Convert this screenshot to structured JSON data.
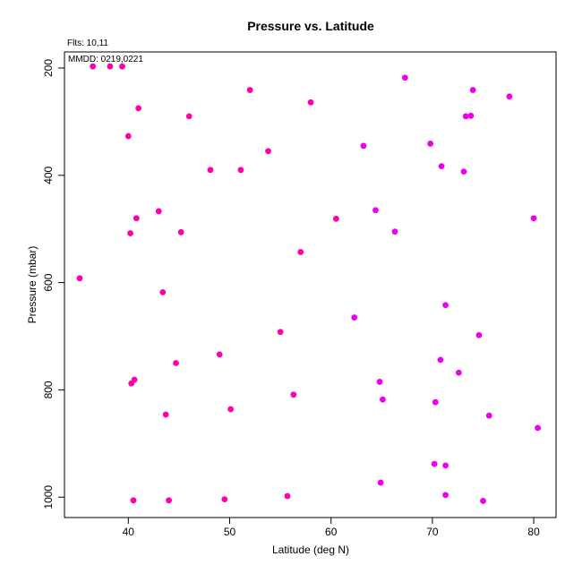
{
  "chart_data": {
    "type": "scatter",
    "title": "Pressure vs. Latitude",
    "xlabel": "Latitude (deg N)",
    "ylabel": "Pressure (mbar)",
    "annotations": [
      "Flts: 10,11",
      "MMDD: 0219,0221"
    ],
    "xlim": [
      33.7,
      82.2
    ],
    "ylim": [
      1038,
      170
    ],
    "y_reversed": true,
    "grid": false,
    "x_ticks": [
      40,
      50,
      60,
      70,
      80
    ],
    "y_ticks": [
      200,
      400,
      600,
      800,
      1000
    ],
    "series": [
      {
        "colors": [
          "#ff00aa",
          "#ee00ee"
        ],
        "points": [
          {
            "x": 36.5,
            "y": 197,
            "c": 0
          },
          {
            "x": 38.2,
            "y": 197,
            "c": 0
          },
          {
            "x": 39.4,
            "y": 197,
            "c": 0
          },
          {
            "x": 41.0,
            "y": 275,
            "c": 0
          },
          {
            "x": 40.0,
            "y": 327,
            "c": 0
          },
          {
            "x": 46.0,
            "y": 290,
            "c": 0
          },
          {
            "x": 52.0,
            "y": 241,
            "c": 0
          },
          {
            "x": 58.0,
            "y": 264,
            "c": 0
          },
          {
            "x": 48.1,
            "y": 390,
            "c": 0
          },
          {
            "x": 51.1,
            "y": 390,
            "c": 0
          },
          {
            "x": 53.8,
            "y": 355,
            "c": 0
          },
          {
            "x": 43.0,
            "y": 467,
            "c": 0
          },
          {
            "x": 40.8,
            "y": 480,
            "c": 0
          },
          {
            "x": 40.2,
            "y": 508,
            "c": 0
          },
          {
            "x": 45.2,
            "y": 506,
            "c": 0
          },
          {
            "x": 57.0,
            "y": 543,
            "c": 0
          },
          {
            "x": 60.5,
            "y": 481,
            "c": 0
          },
          {
            "x": 35.2,
            "y": 592,
            "c": 0
          },
          {
            "x": 43.4,
            "y": 618,
            "c": 0
          },
          {
            "x": 55.0,
            "y": 692,
            "c": 0
          },
          {
            "x": 49.0,
            "y": 734,
            "c": 0
          },
          {
            "x": 44.7,
            "y": 750,
            "c": 0
          },
          {
            "x": 40.6,
            "y": 781,
            "c": 0
          },
          {
            "x": 40.3,
            "y": 788,
            "c": 0
          },
          {
            "x": 56.3,
            "y": 809,
            "c": 0
          },
          {
            "x": 50.1,
            "y": 836,
            "c": 0
          },
          {
            "x": 43.7,
            "y": 846,
            "c": 0
          },
          {
            "x": 40.5,
            "y": 1006,
            "c": 0
          },
          {
            "x": 44.0,
            "y": 1006,
            "c": 0
          },
          {
            "x": 49.5,
            "y": 1004,
            "c": 0
          },
          {
            "x": 55.7,
            "y": 998,
            "c": 0
          },
          {
            "x": 67.3,
            "y": 218,
            "c": 1
          },
          {
            "x": 74.0,
            "y": 241,
            "c": 1
          },
          {
            "x": 77.6,
            "y": 253,
            "c": 1
          },
          {
            "x": 73.3,
            "y": 290,
            "c": 1
          },
          {
            "x": 73.8,
            "y": 289,
            "c": 1
          },
          {
            "x": 63.2,
            "y": 345,
            "c": 1
          },
          {
            "x": 69.8,
            "y": 341,
            "c": 1
          },
          {
            "x": 70.9,
            "y": 383,
            "c": 1
          },
          {
            "x": 73.1,
            "y": 393,
            "c": 1
          },
          {
            "x": 64.4,
            "y": 465,
            "c": 1
          },
          {
            "x": 66.3,
            "y": 505,
            "c": 1
          },
          {
            "x": 80.0,
            "y": 480,
            "c": 1
          },
          {
            "x": 62.3,
            "y": 665,
            "c": 1
          },
          {
            "x": 71.3,
            "y": 642,
            "c": 1
          },
          {
            "x": 74.6,
            "y": 698,
            "c": 1
          },
          {
            "x": 70.8,
            "y": 744,
            "c": 1
          },
          {
            "x": 72.6,
            "y": 768,
            "c": 1
          },
          {
            "x": 64.8,
            "y": 785,
            "c": 1
          },
          {
            "x": 65.1,
            "y": 818,
            "c": 1
          },
          {
            "x": 70.3,
            "y": 823,
            "c": 1
          },
          {
            "x": 75.6,
            "y": 848,
            "c": 1
          },
          {
            "x": 80.4,
            "y": 871,
            "c": 1
          },
          {
            "x": 70.2,
            "y": 938,
            "c": 1
          },
          {
            "x": 71.3,
            "y": 941,
            "c": 1
          },
          {
            "x": 64.9,
            "y": 973,
            "c": 1
          },
          {
            "x": 71.3,
            "y": 996,
            "c": 1
          },
          {
            "x": 75.0,
            "y": 1007,
            "c": 1
          }
        ]
      }
    ]
  }
}
